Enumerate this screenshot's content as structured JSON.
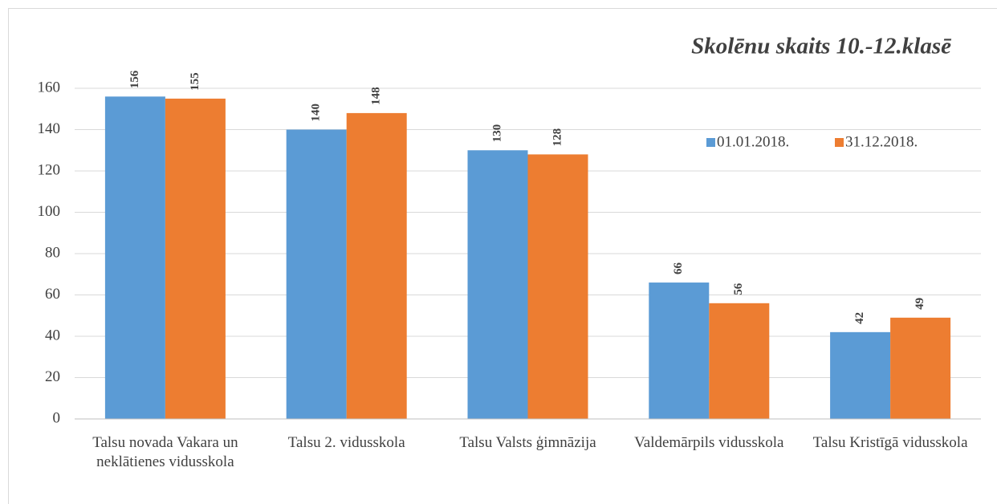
{
  "chart_data": {
    "type": "bar",
    "title": "Skolēnu skaits 10.-12.klasē",
    "categories": [
      "Talsu novada Vakara un neklātienes vidusskola",
      "Talsu 2. vidusskola",
      "Talsu Valsts ģimnāzija",
      "Valdemārpils vidusskola",
      "Talsu Kristīgā vidusskola"
    ],
    "series": [
      {
        "name": "01.01.2018.",
        "color": "#5b9bd5",
        "values": [
          156,
          140,
          130,
          66,
          42
        ]
      },
      {
        "name": "31.12.2018.",
        "color": "#ed7d31",
        "values": [
          155,
          148,
          128,
          56,
          49
        ]
      }
    ],
    "ylim": [
      0,
      160
    ],
    "yticks": [
      0,
      20,
      40,
      60,
      80,
      100,
      120,
      140,
      160
    ],
    "grid": true,
    "legend": "right"
  }
}
